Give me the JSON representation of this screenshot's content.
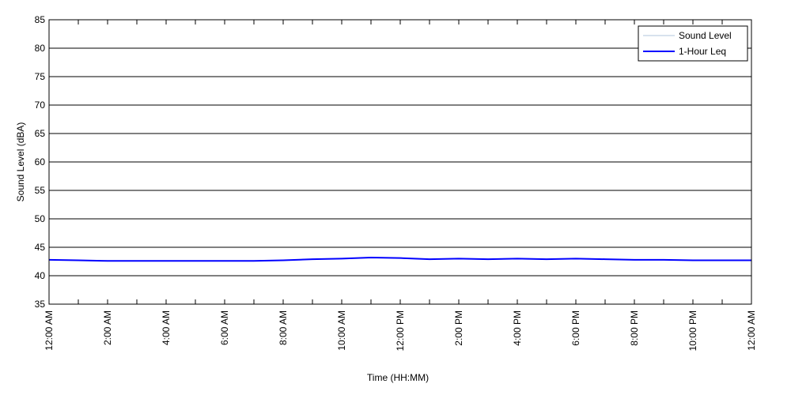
{
  "chart_data": {
    "type": "line",
    "x_label": "Time (HH:MM)",
    "y_label": "Sound Level (dBA)",
    "x": [
      0,
      1,
      2,
      3,
      4,
      5,
      6,
      7,
      8,
      9,
      10,
      11,
      12,
      13,
      14,
      15,
      16,
      17,
      18,
      19,
      20,
      21,
      22,
      23,
      24
    ],
    "series": [
      {
        "name": "Sound Level",
        "color": "#b0c4de",
        "width": 1,
        "values": [
          42.8,
          42.7,
          42.6,
          42.6,
          42.6,
          42.6,
          42.6,
          42.6,
          42.7,
          42.9,
          43.0,
          43.2,
          43.1,
          42.9,
          43.0,
          42.9,
          43.0,
          42.9,
          43.0,
          42.9,
          42.8,
          42.8,
          42.7,
          42.7,
          42.7
        ]
      },
      {
        "name": "1-Hour Leq",
        "color": "#0000ff",
        "width": 2,
        "values": [
          42.8,
          42.7,
          42.6,
          42.6,
          42.6,
          42.6,
          42.6,
          42.6,
          42.7,
          42.9,
          43.0,
          43.2,
          43.1,
          42.9,
          43.0,
          42.9,
          43.0,
          42.9,
          43.0,
          42.9,
          42.8,
          42.8,
          42.7,
          42.7,
          42.7
        ]
      }
    ],
    "xlim": [
      0,
      24
    ],
    "xticks": [
      {
        "value": 0,
        "label": "12:00 AM"
      },
      {
        "value": 2,
        "label": "2:00 AM"
      },
      {
        "value": 4,
        "label": "4:00 AM"
      },
      {
        "value": 6,
        "label": "6:00 AM"
      },
      {
        "value": 8,
        "label": "8:00 AM"
      },
      {
        "value": 10,
        "label": "10:00 AM"
      },
      {
        "value": 12,
        "label": "12:00 PM"
      },
      {
        "value": 14,
        "label": "2:00 PM"
      },
      {
        "value": 16,
        "label": "4:00 PM"
      },
      {
        "value": 18,
        "label": "6:00 PM"
      },
      {
        "value": 20,
        "label": "8:00 PM"
      },
      {
        "value": 22,
        "label": "10:00 PM"
      },
      {
        "value": 24,
        "label": "12:00 AM"
      }
    ],
    "xminorticks": [
      1,
      3,
      5,
      7,
      9,
      11,
      13,
      15,
      17,
      19,
      21,
      23
    ],
    "ylim": [
      35,
      85
    ],
    "yticks": [
      35,
      40,
      45,
      50,
      55,
      60,
      65,
      70,
      75,
      80,
      85
    ],
    "grid": true,
    "legend": "upper right"
  }
}
